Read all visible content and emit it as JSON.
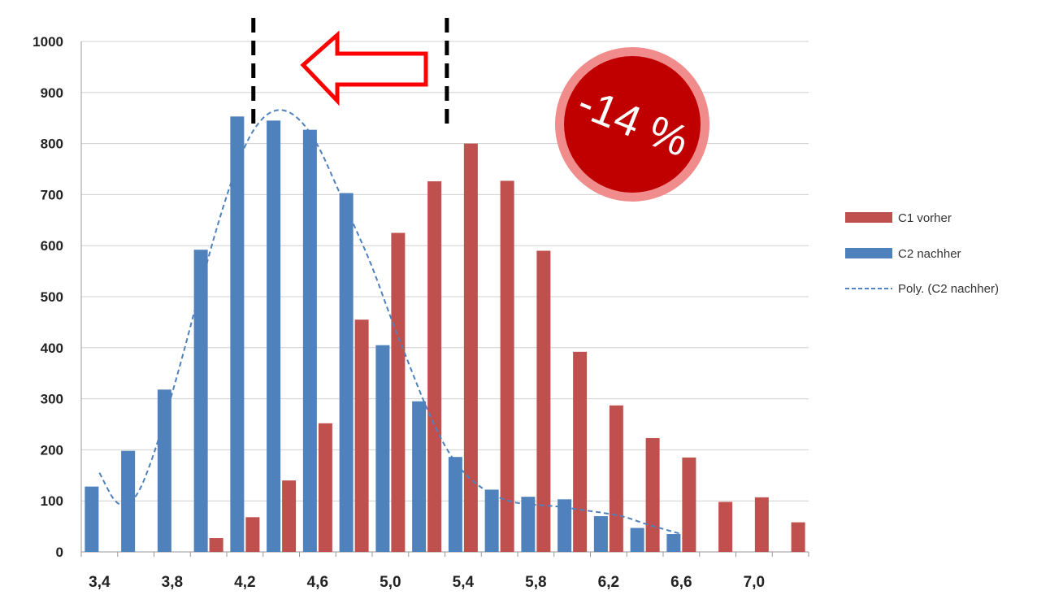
{
  "chart_data": {
    "type": "bar",
    "categories": [
      "3,4",
      "3,6",
      "3,8",
      "4,0",
      "4,2",
      "4,4",
      "4,6",
      "4,8",
      "5,0",
      "5,2",
      "5,4",
      "5,6",
      "5,8",
      "6,0",
      "6,2",
      "6,4",
      "6,6",
      "6,8",
      "7,0",
      "7,2"
    ],
    "x_tick_labels": [
      "3,4",
      "3,8",
      "4,2",
      "4,6",
      "5,0",
      "5,4",
      "5,8",
      "6,2",
      "6,6",
      "7,0"
    ],
    "series": [
      {
        "name": "C1 vorher",
        "color": "#c0504d",
        "values": [
          0,
          0,
          0,
          27,
          68,
          140,
          252,
          455,
          625,
          726,
          800,
          727,
          590,
          392,
          287,
          223,
          185,
          98,
          107,
          58
        ]
      },
      {
        "name": "C2 nachher",
        "color": "#4f81bd",
        "values": [
          128,
          198,
          318,
          592,
          853,
          845,
          827,
          703,
          405,
          295,
          186,
          122,
          108,
          103,
          70,
          47,
          35,
          0,
          0,
          0
        ]
      }
    ],
    "trendline": {
      "name": "Poly. (C2 nachher)",
      "color": "#4f81bd",
      "style": "dashed",
      "points": [
        [
          3.4,
          155
        ],
        [
          3.5,
          85
        ],
        [
          3.6,
          100
        ],
        [
          3.7,
          190
        ],
        [
          3.8,
          310
        ],
        [
          3.9,
          440
        ],
        [
          4.0,
          580
        ],
        [
          4.1,
          700
        ],
        [
          4.2,
          800
        ],
        [
          4.3,
          855
        ],
        [
          4.4,
          870
        ],
        [
          4.5,
          850
        ],
        [
          4.6,
          800
        ],
        [
          4.7,
          720
        ],
        [
          4.8,
          640
        ],
        [
          4.9,
          560
        ],
        [
          5.0,
          460
        ],
        [
          5.1,
          370
        ],
        [
          5.2,
          280
        ],
        [
          5.3,
          205
        ],
        [
          5.4,
          155
        ],
        [
          5.5,
          125
        ],
        [
          5.6,
          105
        ],
        [
          5.7,
          95
        ],
        [
          5.8,
          92
        ],
        [
          5.9,
          90
        ],
        [
          6.0,
          85
        ],
        [
          6.1,
          80
        ],
        [
          6.2,
          75
        ],
        [
          6.3,
          68
        ],
        [
          6.4,
          55
        ],
        [
          6.5,
          45
        ],
        [
          6.6,
          35
        ]
      ]
    },
    "ylim": [
      0,
      1000
    ],
    "yticks": [
      0,
      100,
      200,
      300,
      400,
      500,
      600,
      700,
      800,
      900,
      1000
    ],
    "grid": true,
    "legend_position": "right",
    "title": "",
    "xlabel": "",
    "ylabel": ""
  },
  "legend": {
    "c1_label": "C1 vorher",
    "c2_label": "C2 nachher",
    "poly_label": "Poly. (C2 nachher)"
  },
  "annotation": {
    "badge_text": "-14 %",
    "badge_color": "#c00000",
    "arrow_color": "#ff0000",
    "arrow_direction": "left"
  }
}
